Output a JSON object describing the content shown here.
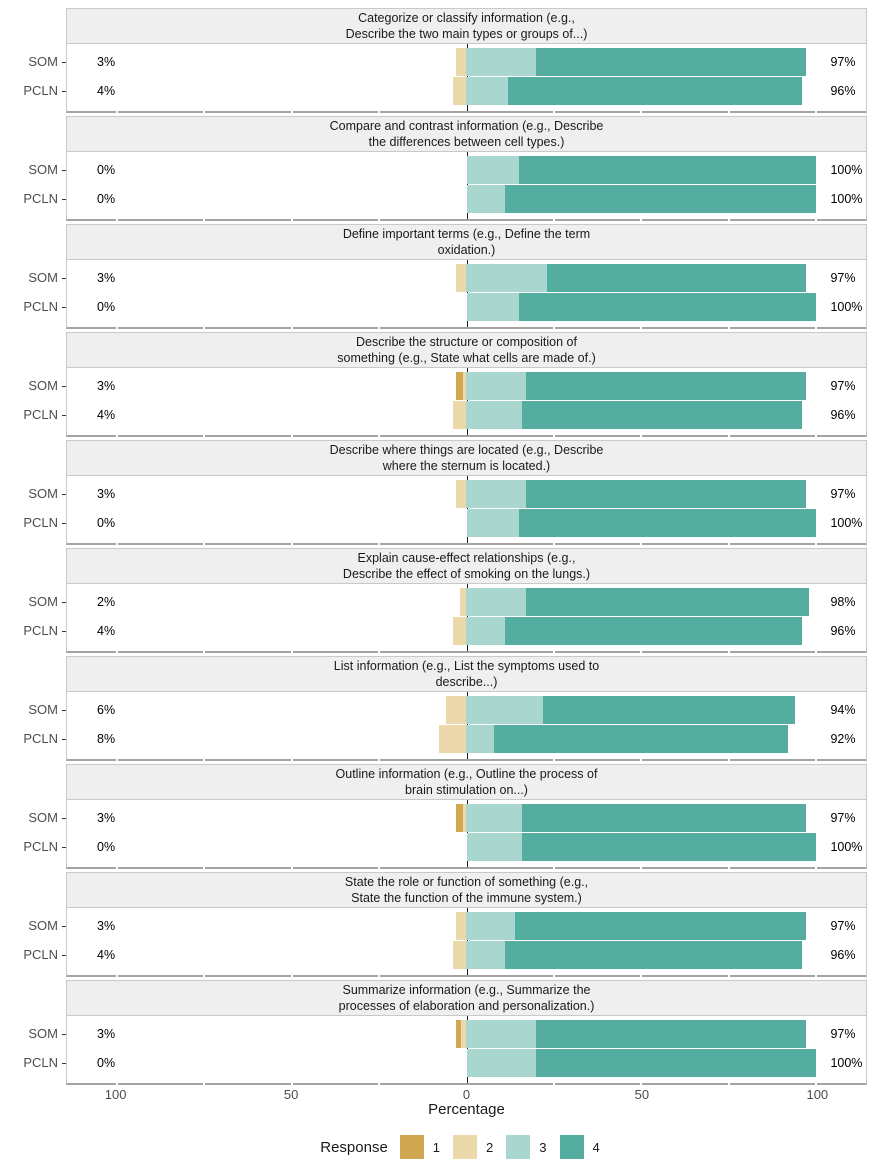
{
  "chart_data": {
    "type": "bar",
    "variant": "diverging-stacked-horizontal-likert",
    "xlabel": "Percentage",
    "axis": {
      "zero_center": true,
      "units_per_percent_of_width": 0.438,
      "range": [
        -114,
        114
      ]
    },
    "x_ticks": [
      {
        "value": -100,
        "label": "100"
      },
      {
        "value": -50,
        "label": "50"
      },
      {
        "value": 0,
        "label": "0"
      },
      {
        "value": 50,
        "label": "50"
      },
      {
        "value": 100,
        "label": "100"
      }
    ],
    "gridline_values": [
      -100,
      -75,
      -50,
      -25,
      25,
      50,
      75,
      100
    ],
    "legend": {
      "title": "Response",
      "entries": [
        {
          "label": "1",
          "color": "#D2A752"
        },
        {
          "label": "2",
          "color": "#EBD9AC"
        },
        {
          "label": "3",
          "color": "#A9D6CF"
        },
        {
          "label": "4",
          "color": "#55AD9F"
        }
      ]
    },
    "groups": [
      "SOM",
      "PCLN"
    ],
    "label_positions": {
      "low_label_center_value": -103,
      "high_label_left_value": 104
    },
    "panels": [
      {
        "title": "Categorize or classify information (e.g.,\nDescribe the two main types or groups of...)",
        "rows": [
          {
            "group": "SOM",
            "low": "3%",
            "high": "97%",
            "values": [
              0,
              3,
              20,
              77
            ]
          },
          {
            "group": "PCLN",
            "low": "4%",
            "high": "96%",
            "values": [
              0,
              4,
              12,
              84
            ]
          }
        ]
      },
      {
        "title": "Compare and contrast information (e.g., Describe\nthe differences between cell types.)",
        "rows": [
          {
            "group": "SOM",
            "low": "0%",
            "high": "100%",
            "values": [
              0,
              0,
              15,
              85
            ]
          },
          {
            "group": "PCLN",
            "low": "0%",
            "high": "100%",
            "values": [
              0,
              0,
              11,
              89
            ]
          }
        ]
      },
      {
        "title": "Define important terms (e.g., Define the term\noxidation.)",
        "rows": [
          {
            "group": "SOM",
            "low": "3%",
            "high": "97%",
            "values": [
              0,
              3,
              23,
              74
            ]
          },
          {
            "group": "PCLN",
            "low": "0%",
            "high": "100%",
            "values": [
              0,
              0,
              15,
              85
            ]
          }
        ]
      },
      {
        "title": "Describe the structure or composition of\nsomething (e.g., State what cells are made of.)",
        "rows": [
          {
            "group": "SOM",
            "low": "3%",
            "high": "97%",
            "values": [
              2,
              1,
              17,
              80
            ]
          },
          {
            "group": "PCLN",
            "low": "4%",
            "high": "96%",
            "values": [
              0,
              4,
              16,
              80
            ]
          }
        ]
      },
      {
        "title": "Describe where things are located (e.g., Describe\nwhere the sternum is located.)",
        "rows": [
          {
            "group": "SOM",
            "low": "3%",
            "high": "97%",
            "values": [
              0,
              3,
              17,
              80
            ]
          },
          {
            "group": "PCLN",
            "low": "0%",
            "high": "100%",
            "values": [
              0,
              0,
              15,
              85
            ]
          }
        ]
      },
      {
        "title": "Explain cause-effect relationships (e.g.,\nDescribe the effect of smoking on the lungs.)",
        "rows": [
          {
            "group": "SOM",
            "low": "2%",
            "high": "98%",
            "values": [
              0,
              2,
              17,
              81
            ]
          },
          {
            "group": "PCLN",
            "low": "4%",
            "high": "96%",
            "values": [
              0,
              4,
              11,
              85
            ]
          }
        ]
      },
      {
        "title": "List information (e.g., List the symptoms used to\ndescribe...)",
        "rows": [
          {
            "group": "SOM",
            "low": "6%",
            "high": "94%",
            "values": [
              0,
              6,
              22,
              72
            ]
          },
          {
            "group": "PCLN",
            "low": "8%",
            "high": "92%",
            "values": [
              0,
              8,
              8,
              84
            ]
          }
        ]
      },
      {
        "title": "Outline information (e.g., Outline the process of\nbrain stimulation on...)",
        "rows": [
          {
            "group": "SOM",
            "low": "3%",
            "high": "97%",
            "values": [
              2,
              1,
              16,
              81
            ]
          },
          {
            "group": "PCLN",
            "low": "0%",
            "high": "100%",
            "values": [
              0,
              0,
              16,
              84
            ]
          }
        ]
      },
      {
        "title": "State the role or function of something (e.g.,\nState the function of the immune system.)",
        "rows": [
          {
            "group": "SOM",
            "low": "3%",
            "high": "97%",
            "values": [
              0,
              3,
              14,
              83
            ]
          },
          {
            "group": "PCLN",
            "low": "4%",
            "high": "96%",
            "values": [
              0,
              4,
              11,
              85
            ]
          }
        ]
      },
      {
        "title": "Summarize information (e.g., Summarize the\nprocesses of elaboration and personalization.)",
        "rows": [
          {
            "group": "SOM",
            "low": "3%",
            "high": "97%",
            "values": [
              1.5,
              1.5,
              20,
              77
            ]
          },
          {
            "group": "PCLN",
            "low": "0%",
            "high": "100%",
            "values": [
              0,
              0,
              20,
              80
            ]
          }
        ]
      }
    ]
  }
}
